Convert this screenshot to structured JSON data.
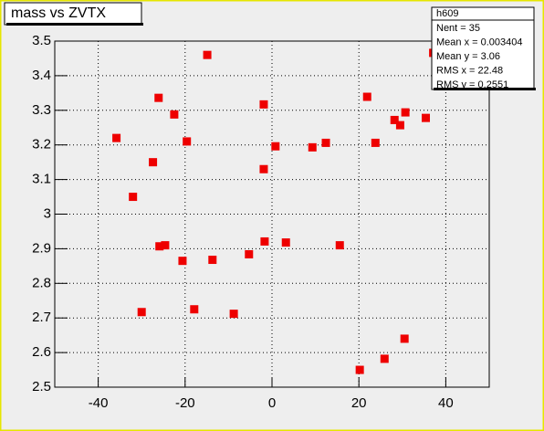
{
  "chart_data": {
    "type": "scatter",
    "title": "mass vs ZVTX",
    "x": [
      -35.8,
      -32.0,
      -30.0,
      -27.4,
      -26.1,
      -25.9,
      -24.6,
      -22.5,
      -20.6,
      -19.6,
      -17.9,
      -14.9,
      -13.7,
      -8.8,
      -5.3,
      -1.9,
      -1.9,
      -1.7,
      0.8,
      3.2,
      9.3,
      12.4,
      15.6,
      20.2,
      21.9,
      23.8,
      25.9,
      28.2,
      29.5,
      30.5,
      30.7,
      35.4,
      37.1
    ],
    "y": [
      3.22,
      3.05,
      2.717,
      3.15,
      3.336,
      2.907,
      2.91,
      3.288,
      2.865,
      3.21,
      2.725,
      3.46,
      2.868,
      2.712,
      2.884,
      3.317,
      3.13,
      2.921,
      3.196,
      2.918,
      3.193,
      3.206,
      2.91,
      2.55,
      3.339,
      3.206,
      2.582,
      3.272,
      3.257,
      2.64,
      3.294,
      3.278,
      3.466
    ],
    "color": "#ee0000",
    "xlim": [
      -50,
      50
    ],
    "xticks": [
      -40,
      -20,
      0,
      20,
      40
    ],
    "ylim": [
      2.5,
      3.5
    ],
    "yticks": [
      2.5,
      2.6,
      2.7,
      2.8,
      2.9,
      3,
      3.1,
      3.2,
      3.3,
      3.4,
      3.5
    ],
    "grid": true,
    "stats": {
      "name": "h609",
      "lines": [
        "Nent = 35",
        "Mean x = 0.003404",
        "Mean y =   3.06",
        "RMS x  =  22.48",
        "RMS y  = 0.2551"
      ]
    }
  }
}
